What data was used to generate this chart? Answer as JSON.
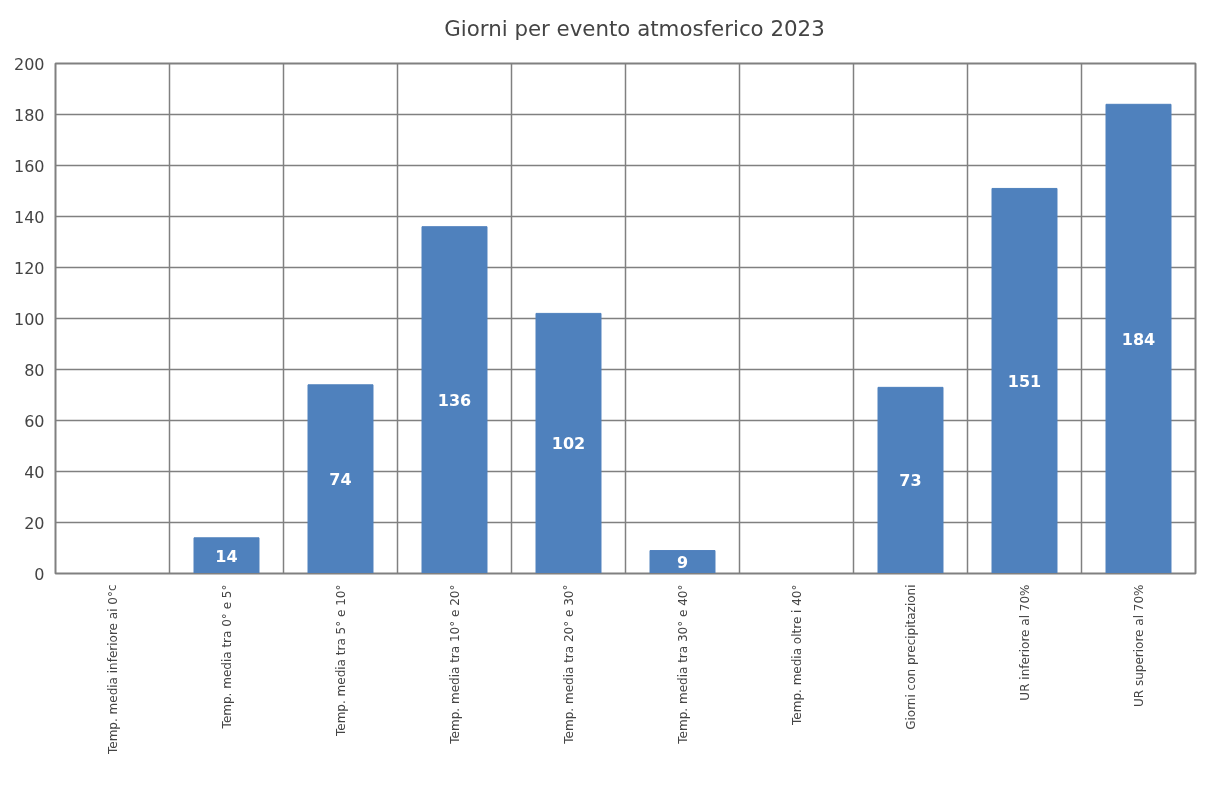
{
  "chart_data": {
    "type": "bar",
    "categories": [
      "Temp. media inferiore ai 0°c",
      "Temp. media tra 0° e 5°",
      "Temp. media tra 5° e 10°",
      "Temp. media tra 10° e 20°",
      "Temp. media tra 20° e 30°",
      "Temp. media tra 30° e 40°",
      "Temp. media oltre i 40°",
      "Giorni con precipitazioni",
      "UR inferiore al 70%",
      "UR superiore al 70%"
    ],
    "series": [
      {
        "name": "Giorni per evento atmosferico 2023",
        "color": "#4f81bd",
        "values": [
          0,
          14,
          74,
          136,
          102,
          9,
          0,
          73,
          151,
          184
        ],
        "value_labels": [
          null,
          "14",
          "74",
          "136",
          "102",
          "9",
          null,
          "73",
          "151",
          "184"
        ]
      }
    ],
    "ylim": [
      0,
      200
    ],
    "yticks": [
      0,
      20,
      40,
      60,
      80,
      100,
      120,
      140,
      160,
      180,
      200
    ],
    "grid": true,
    "legend": "top"
  }
}
